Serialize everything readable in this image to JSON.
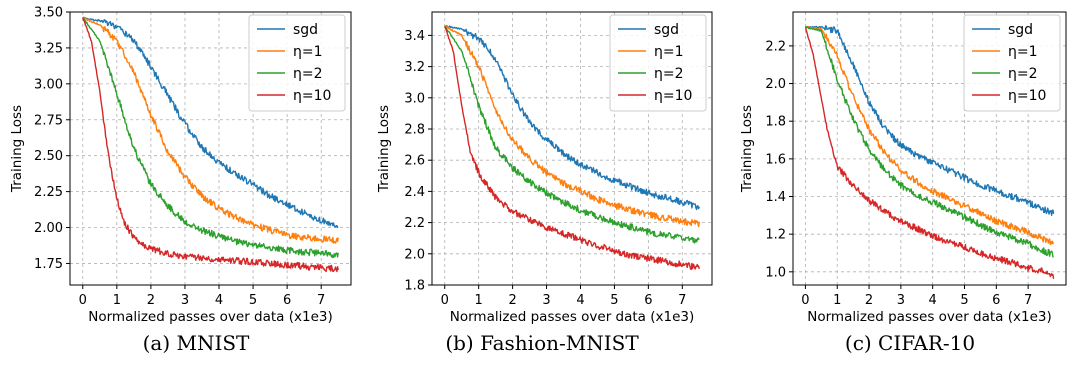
{
  "chart_data": [
    {
      "type": "line",
      "caption": "(a) MNIST",
      "xlabel": "Normalized passes over data (x1e3)",
      "ylabel": "Training Loss",
      "xlim": [
        -0.375,
        7.875
      ],
      "ylim": [
        1.6,
        3.5
      ],
      "xticks": [
        0,
        1,
        2,
        3,
        4,
        5,
        6,
        7
      ],
      "xtick_labels": [
        "0",
        "1",
        "2",
        "3",
        "4",
        "5",
        "6",
        "7"
      ],
      "yticks": [
        1.75,
        2.0,
        2.25,
        2.5,
        2.75,
        3.0,
        3.25,
        3.5
      ],
      "ytick_labels": [
        "1.75",
        "2.00",
        "2.25",
        "2.50",
        "2.75",
        "3.00",
        "3.25",
        "3.50"
      ],
      "grid": true,
      "legend_position": "top-right",
      "series": [
        {
          "name": "sgd",
          "color": "#1f77b4",
          "x": [
            0,
            0.5,
            1,
            1.5,
            2,
            2.5,
            3,
            3.5,
            4,
            4.5,
            5,
            5.5,
            6,
            6.5,
            7,
            7.5
          ],
          "values": [
            3.46,
            3.44,
            3.4,
            3.3,
            3.12,
            2.92,
            2.72,
            2.56,
            2.45,
            2.37,
            2.3,
            2.22,
            2.16,
            2.1,
            2.05,
            2.01
          ]
        },
        {
          "name": "η=1",
          "color": "#ff7f0e",
          "x": [
            0,
            0.5,
            1,
            1.5,
            2,
            2.5,
            3,
            3.5,
            4,
            4.5,
            5,
            5.5,
            6,
            6.5,
            7,
            7.5
          ],
          "values": [
            3.46,
            3.41,
            3.3,
            3.08,
            2.78,
            2.53,
            2.35,
            2.22,
            2.13,
            2.07,
            2.02,
            1.98,
            1.95,
            1.93,
            1.92,
            1.91
          ]
        },
        {
          "name": "η=2",
          "color": "#2ca02c",
          "x": [
            0,
            0.5,
            1,
            1.5,
            2,
            2.5,
            3,
            3.5,
            4,
            4.5,
            5,
            5.5,
            6,
            6.5,
            7,
            7.5
          ],
          "values": [
            3.46,
            3.3,
            2.93,
            2.55,
            2.3,
            2.15,
            2.04,
            1.98,
            1.94,
            1.9,
            1.88,
            1.86,
            1.84,
            1.83,
            1.82,
            1.81
          ]
        },
        {
          "name": "η=10",
          "color": "#d62728",
          "x": [
            0,
            0.25,
            0.5,
            0.75,
            1,
            1.25,
            1.5,
            2,
            2.5,
            3,
            3.5,
            4,
            4.5,
            5,
            5.5,
            6,
            6.5,
            7,
            7.5
          ],
          "values": [
            3.46,
            3.3,
            2.95,
            2.5,
            2.2,
            2.02,
            1.93,
            1.85,
            1.82,
            1.8,
            1.79,
            1.78,
            1.77,
            1.76,
            1.75,
            1.74,
            1.73,
            1.72,
            1.71
          ]
        }
      ]
    },
    {
      "type": "line",
      "caption": "(b) Fashion-MNIST",
      "xlabel": "Normalized passes over data (x1e3)",
      "ylabel": "Training Loss",
      "xlim": [
        -0.375,
        7.875
      ],
      "ylim": [
        1.8,
        3.55
      ],
      "xticks": [
        0,
        1,
        2,
        3,
        4,
        5,
        6,
        7
      ],
      "xtick_labels": [
        "0",
        "1",
        "2",
        "3",
        "4",
        "5",
        "6",
        "7"
      ],
      "yticks": [
        1.8,
        2.0,
        2.2,
        2.4,
        2.6,
        2.8,
        3.0,
        3.2,
        3.4
      ],
      "ytick_labels": [
        "1.8",
        "2.0",
        "2.2",
        "2.4",
        "2.6",
        "2.8",
        "3.0",
        "3.2",
        "3.4"
      ],
      "grid": true,
      "legend_position": "top-right",
      "series": [
        {
          "name": "sgd",
          "color": "#1f77b4",
          "x": [
            0,
            0.5,
            1,
            1.5,
            2,
            2.5,
            3,
            3.5,
            4,
            4.5,
            5,
            5.5,
            6,
            6.5,
            7,
            7.5
          ],
          "values": [
            3.46,
            3.44,
            3.38,
            3.25,
            3.02,
            2.84,
            2.73,
            2.64,
            2.57,
            2.52,
            2.47,
            2.43,
            2.39,
            2.36,
            2.33,
            2.3
          ]
        },
        {
          "name": "η=1",
          "color": "#ff7f0e",
          "x": [
            0,
            0.5,
            1,
            1.5,
            2,
            2.5,
            3,
            3.5,
            4,
            4.5,
            5,
            5.5,
            6,
            6.5,
            7,
            7.5
          ],
          "values": [
            3.46,
            3.4,
            3.2,
            2.92,
            2.73,
            2.61,
            2.52,
            2.45,
            2.4,
            2.35,
            2.31,
            2.28,
            2.25,
            2.23,
            2.21,
            2.19
          ]
        },
        {
          "name": "η=2",
          "color": "#2ca02c",
          "x": [
            0,
            0.5,
            1,
            1.5,
            2,
            2.5,
            3,
            3.5,
            4,
            4.5,
            5,
            5.5,
            6,
            6.5,
            7,
            7.5
          ],
          "values": [
            3.46,
            3.3,
            2.95,
            2.68,
            2.55,
            2.46,
            2.39,
            2.33,
            2.28,
            2.24,
            2.2,
            2.17,
            2.14,
            2.12,
            2.1,
            2.08
          ]
        },
        {
          "name": "η=10",
          "color": "#d62728",
          "x": [
            0,
            0.25,
            0.5,
            0.75,
            1,
            1.5,
            2,
            2.5,
            3,
            3.5,
            4,
            4.5,
            5,
            5.5,
            6,
            6.5,
            7,
            7.5
          ],
          "values": [
            3.46,
            3.3,
            2.95,
            2.66,
            2.52,
            2.36,
            2.27,
            2.22,
            2.17,
            2.13,
            2.09,
            2.05,
            2.02,
            1.99,
            1.97,
            1.95,
            1.93,
            1.91
          ]
        }
      ]
    },
    {
      "type": "line",
      "caption": "(c) CIFAR-10",
      "xlabel": "Normalized passes over data (x1e3)",
      "ylabel": "Training Loss",
      "xlim": [
        -0.39,
        8.19
      ],
      "ylim": [
        0.93,
        2.38
      ],
      "xticks": [
        0,
        1,
        2,
        3,
        4,
        5,
        6,
        7
      ],
      "xtick_labels": [
        "0",
        "1",
        "2",
        "3",
        "4",
        "5",
        "6",
        "7"
      ],
      "yticks": [
        1.0,
        1.2,
        1.4,
        1.6,
        1.8,
        2.0,
        2.2
      ],
      "ytick_labels": [
        "1.0",
        "1.2",
        "1.4",
        "1.6",
        "1.8",
        "2.0",
        "2.2"
      ],
      "grid": true,
      "legend_position": "top-right",
      "series": [
        {
          "name": "sgd",
          "color": "#1f77b4",
          "x": [
            0,
            0.5,
            1,
            1.5,
            2,
            2.5,
            3,
            3.5,
            4,
            4.5,
            5,
            5.5,
            6,
            6.5,
            7,
            7.5,
            7.8
          ],
          "values": [
            2.3,
            2.3,
            2.28,
            2.1,
            1.9,
            1.76,
            1.67,
            1.62,
            1.58,
            1.54,
            1.5,
            1.46,
            1.43,
            1.4,
            1.37,
            1.33,
            1.31
          ]
        },
        {
          "name": "η=1",
          "color": "#ff7f0e",
          "x": [
            0,
            0.5,
            1,
            1.5,
            2,
            2.5,
            3,
            3.5,
            4,
            4.5,
            5,
            5.5,
            6,
            6.5,
            7,
            7.5,
            7.8
          ],
          "values": [
            2.3,
            2.29,
            2.15,
            1.93,
            1.76,
            1.63,
            1.54,
            1.48,
            1.43,
            1.39,
            1.35,
            1.31,
            1.27,
            1.24,
            1.21,
            1.17,
            1.15
          ]
        },
        {
          "name": "η=2",
          "color": "#2ca02c",
          "x": [
            0,
            0.5,
            1,
            1.5,
            2,
            2.5,
            3,
            3.5,
            4,
            4.5,
            5,
            5.5,
            6,
            6.5,
            7,
            7.5,
            7.8
          ],
          "values": [
            2.3,
            2.28,
            2.02,
            1.81,
            1.65,
            1.54,
            1.46,
            1.41,
            1.37,
            1.33,
            1.29,
            1.25,
            1.21,
            1.18,
            1.15,
            1.11,
            1.09
          ]
        },
        {
          "name": "η=10",
          "color": "#d62728",
          "x": [
            0,
            0.25,
            0.5,
            0.75,
            1,
            1.5,
            2,
            2.5,
            3,
            3.5,
            4,
            4.5,
            5,
            5.5,
            6,
            6.5,
            7,
            7.5,
            7.8
          ],
          "values": [
            2.3,
            2.15,
            1.92,
            1.7,
            1.56,
            1.46,
            1.38,
            1.32,
            1.27,
            1.23,
            1.19,
            1.16,
            1.13,
            1.1,
            1.07,
            1.05,
            1.02,
            1.0,
            0.98
          ]
        }
      ]
    }
  ]
}
